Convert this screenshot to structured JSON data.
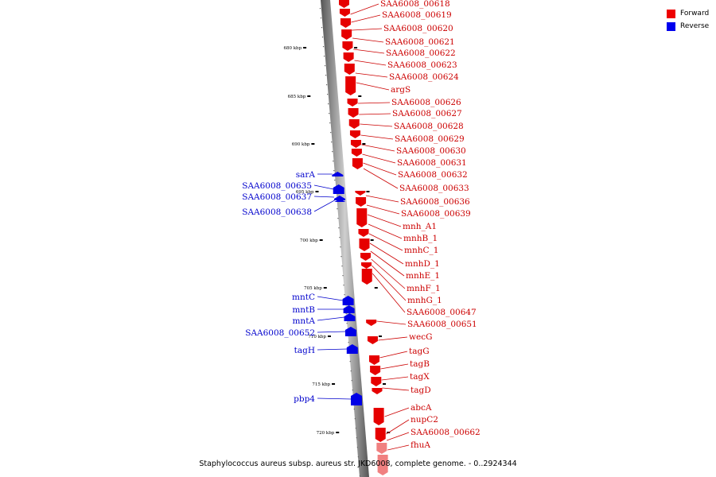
{
  "legend": {
    "forward_label": "Forward",
    "reverse_label": "Reverse",
    "forward_color": "#ee0000",
    "reverse_color": "#0000ee"
  },
  "caption": "Staphylococcus aureus subsp. aureus str. JKD6008, complete genome. - 0..2924344",
  "ticks": [
    "680 kbp",
    "685 kbp",
    "690 kbp",
    "695 kbp",
    "700 kbp",
    "705 kbp",
    "710 kbp",
    "715 kbp",
    "720 kbp"
  ],
  "forward_genes": [
    "SAA6008_00618",
    "SAA6008_00619",
    "SAA6008_00620",
    "SAA6008_00621",
    "SAA6008_00622",
    "SAA6008_00623",
    "SAA6008_00624",
    "argS",
    "SAA6008_00626",
    "SAA6008_00627",
    "SAA6008_00628",
    "SAA6008_00629",
    "SAA6008_00630",
    "SAA6008_00631",
    "SAA6008_00632",
    "SAA6008_00633",
    "SAA6008_00636",
    "SAA6008_00639",
    "mnh_A1",
    "mnhB_1",
    "mnhC_1",
    "mnhD_1",
    "mnhE_1",
    "mnhF_1",
    "mnhG_1",
    "SAA6008_00647",
    "SAA6008_00651",
    "wecG",
    "tagG",
    "tagB",
    "tagX",
    "tagD",
    "abcA",
    "nupC2",
    "SAA6008_00662",
    "fhuA"
  ],
  "reverse_genes": [
    "sarA",
    "SAA6008_00635",
    "SAA6008_00637",
    "SAA6008_00638",
    "mntC",
    "mntB",
    "mntA",
    "SAA6008_00652",
    "tagH",
    "pbp4"
  ]
}
